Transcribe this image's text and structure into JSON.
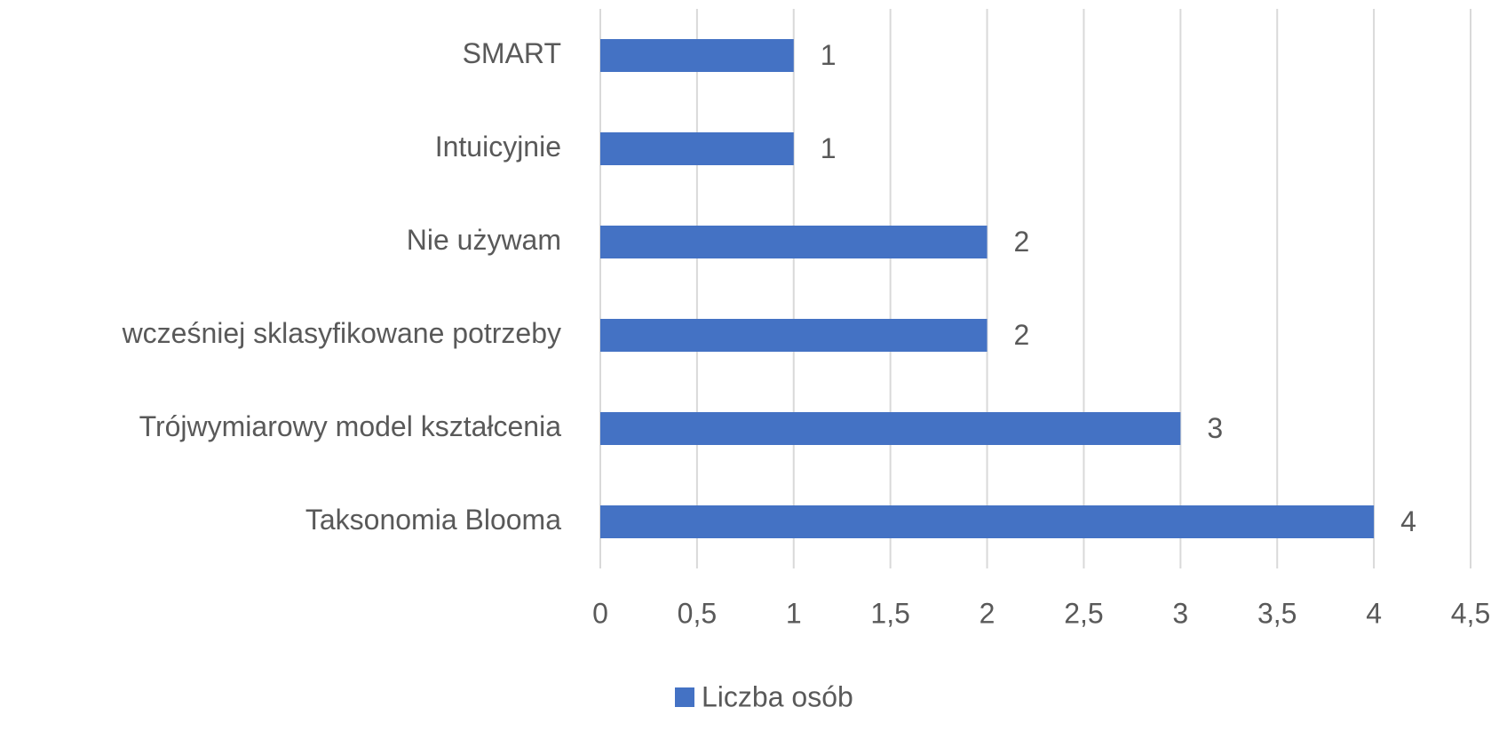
{
  "chart_data": {
    "type": "bar",
    "orientation": "horizontal",
    "categories": [
      "SMART",
      "Intuicyjnie",
      "Nie używam",
      "wcześniej sklasyfikowane potrzeby",
      "Trójwymiarowy model kształcenia",
      "Taksonomia Blooma"
    ],
    "series": [
      {
        "name": "Liczba osób",
        "color": "#4472c4",
        "values": [
          1,
          1,
          2,
          2,
          3,
          4
        ]
      }
    ],
    "xlim": [
      0,
      4.5
    ],
    "xticks": [
      0,
      {
        "value": 0.5,
        "label": "0,5"
      },
      1,
      {
        "value": 1.5,
        "label": "1,5"
      },
      2,
      {
        "value": 2.5,
        "label": "2,5"
      },
      3,
      {
        "value": 3.5,
        "label": "3,5"
      },
      4,
      {
        "value": 4.5,
        "label": "4,5"
      }
    ],
    "grid": true,
    "legend": "bottom",
    "data_labels": true
  }
}
